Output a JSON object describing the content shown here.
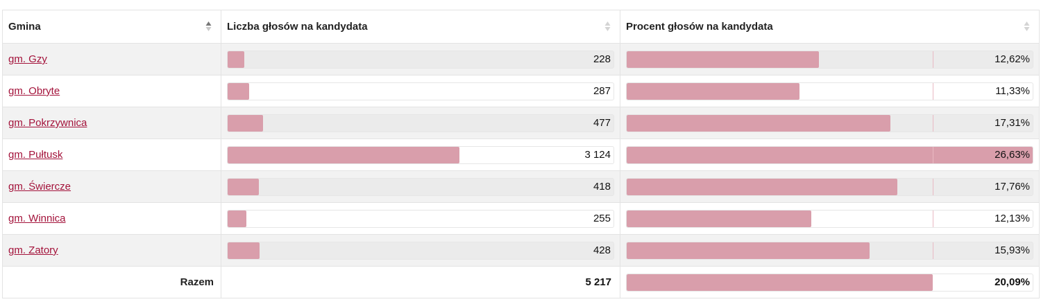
{
  "headers": {
    "gmina": "Gmina",
    "votes": "Liczba głosów na kandydata",
    "percent": "Procent głosów na kandydata"
  },
  "rows": [
    {
      "name": "gm. Gzy",
      "votes": "228",
      "votes_value": 228,
      "percent": "12,62%",
      "percent_value": 12.62
    },
    {
      "name": "gm. Obryte",
      "votes": "287",
      "votes_value": 287,
      "percent": "11,33%",
      "percent_value": 11.33
    },
    {
      "name": "gm. Pokrzywnica",
      "votes": "477",
      "votes_value": 477,
      "percent": "17,31%",
      "percent_value": 17.31
    },
    {
      "name": "gm. Pułtusk",
      "votes": "3 124",
      "votes_value": 3124,
      "percent": "26,63%",
      "percent_value": 26.63
    },
    {
      "name": "gm. Świercze",
      "votes": "418",
      "votes_value": 418,
      "percent": "17,76%",
      "percent_value": 17.76
    },
    {
      "name": "gm. Winnica",
      "votes": "255",
      "votes_value": 255,
      "percent": "12,13%",
      "percent_value": 12.13
    },
    {
      "name": "gm. Zatory",
      "votes": "428",
      "votes_value": 428,
      "percent": "15,93%",
      "percent_value": 15.93
    }
  ],
  "total": {
    "label": "Razem",
    "votes": "5 217",
    "votes_value": 5217,
    "percent": "20,09%",
    "percent_value": 20.09
  },
  "colors": {
    "bar": "#d99eab",
    "link": "#a3123a",
    "stripe": "#f2f2f2"
  },
  "icons": {
    "gmina_sort": "sort-ascending-icon",
    "votes_sort": "sort-both-icon",
    "percent_sort": "sort-both-icon"
  }
}
